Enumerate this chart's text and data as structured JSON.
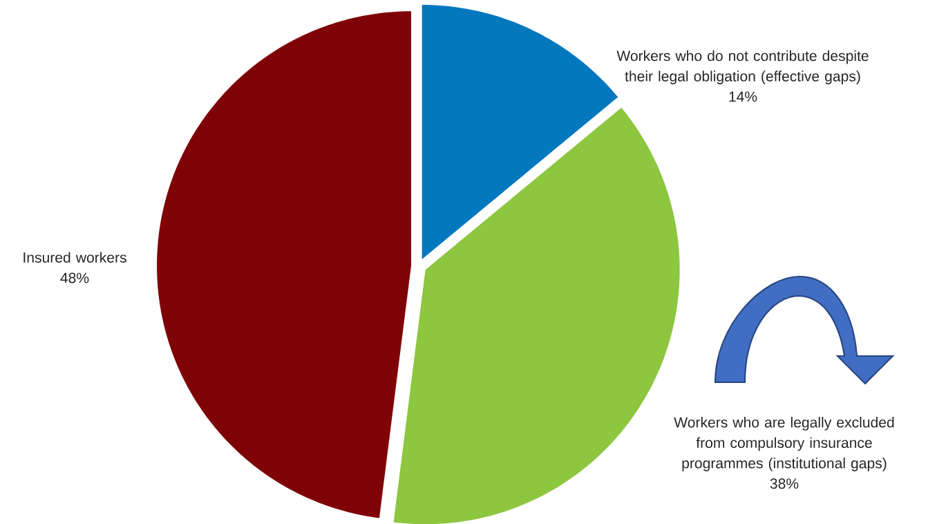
{
  "chart_data": {
    "type": "pie",
    "categories": [
      "Workers who do not contribute despite their legal obligation (effective gaps)",
      "Workers who are legally excluded from compulsory insurance programmes (institutional gaps)",
      "Insured workers"
    ],
    "values": [
      14,
      38,
      48
    ],
    "colors": [
      "#0478be",
      "#8dc63f",
      "#7f0306"
    ],
    "value_labels": [
      "14%",
      "38%",
      "48%"
    ]
  }
}
